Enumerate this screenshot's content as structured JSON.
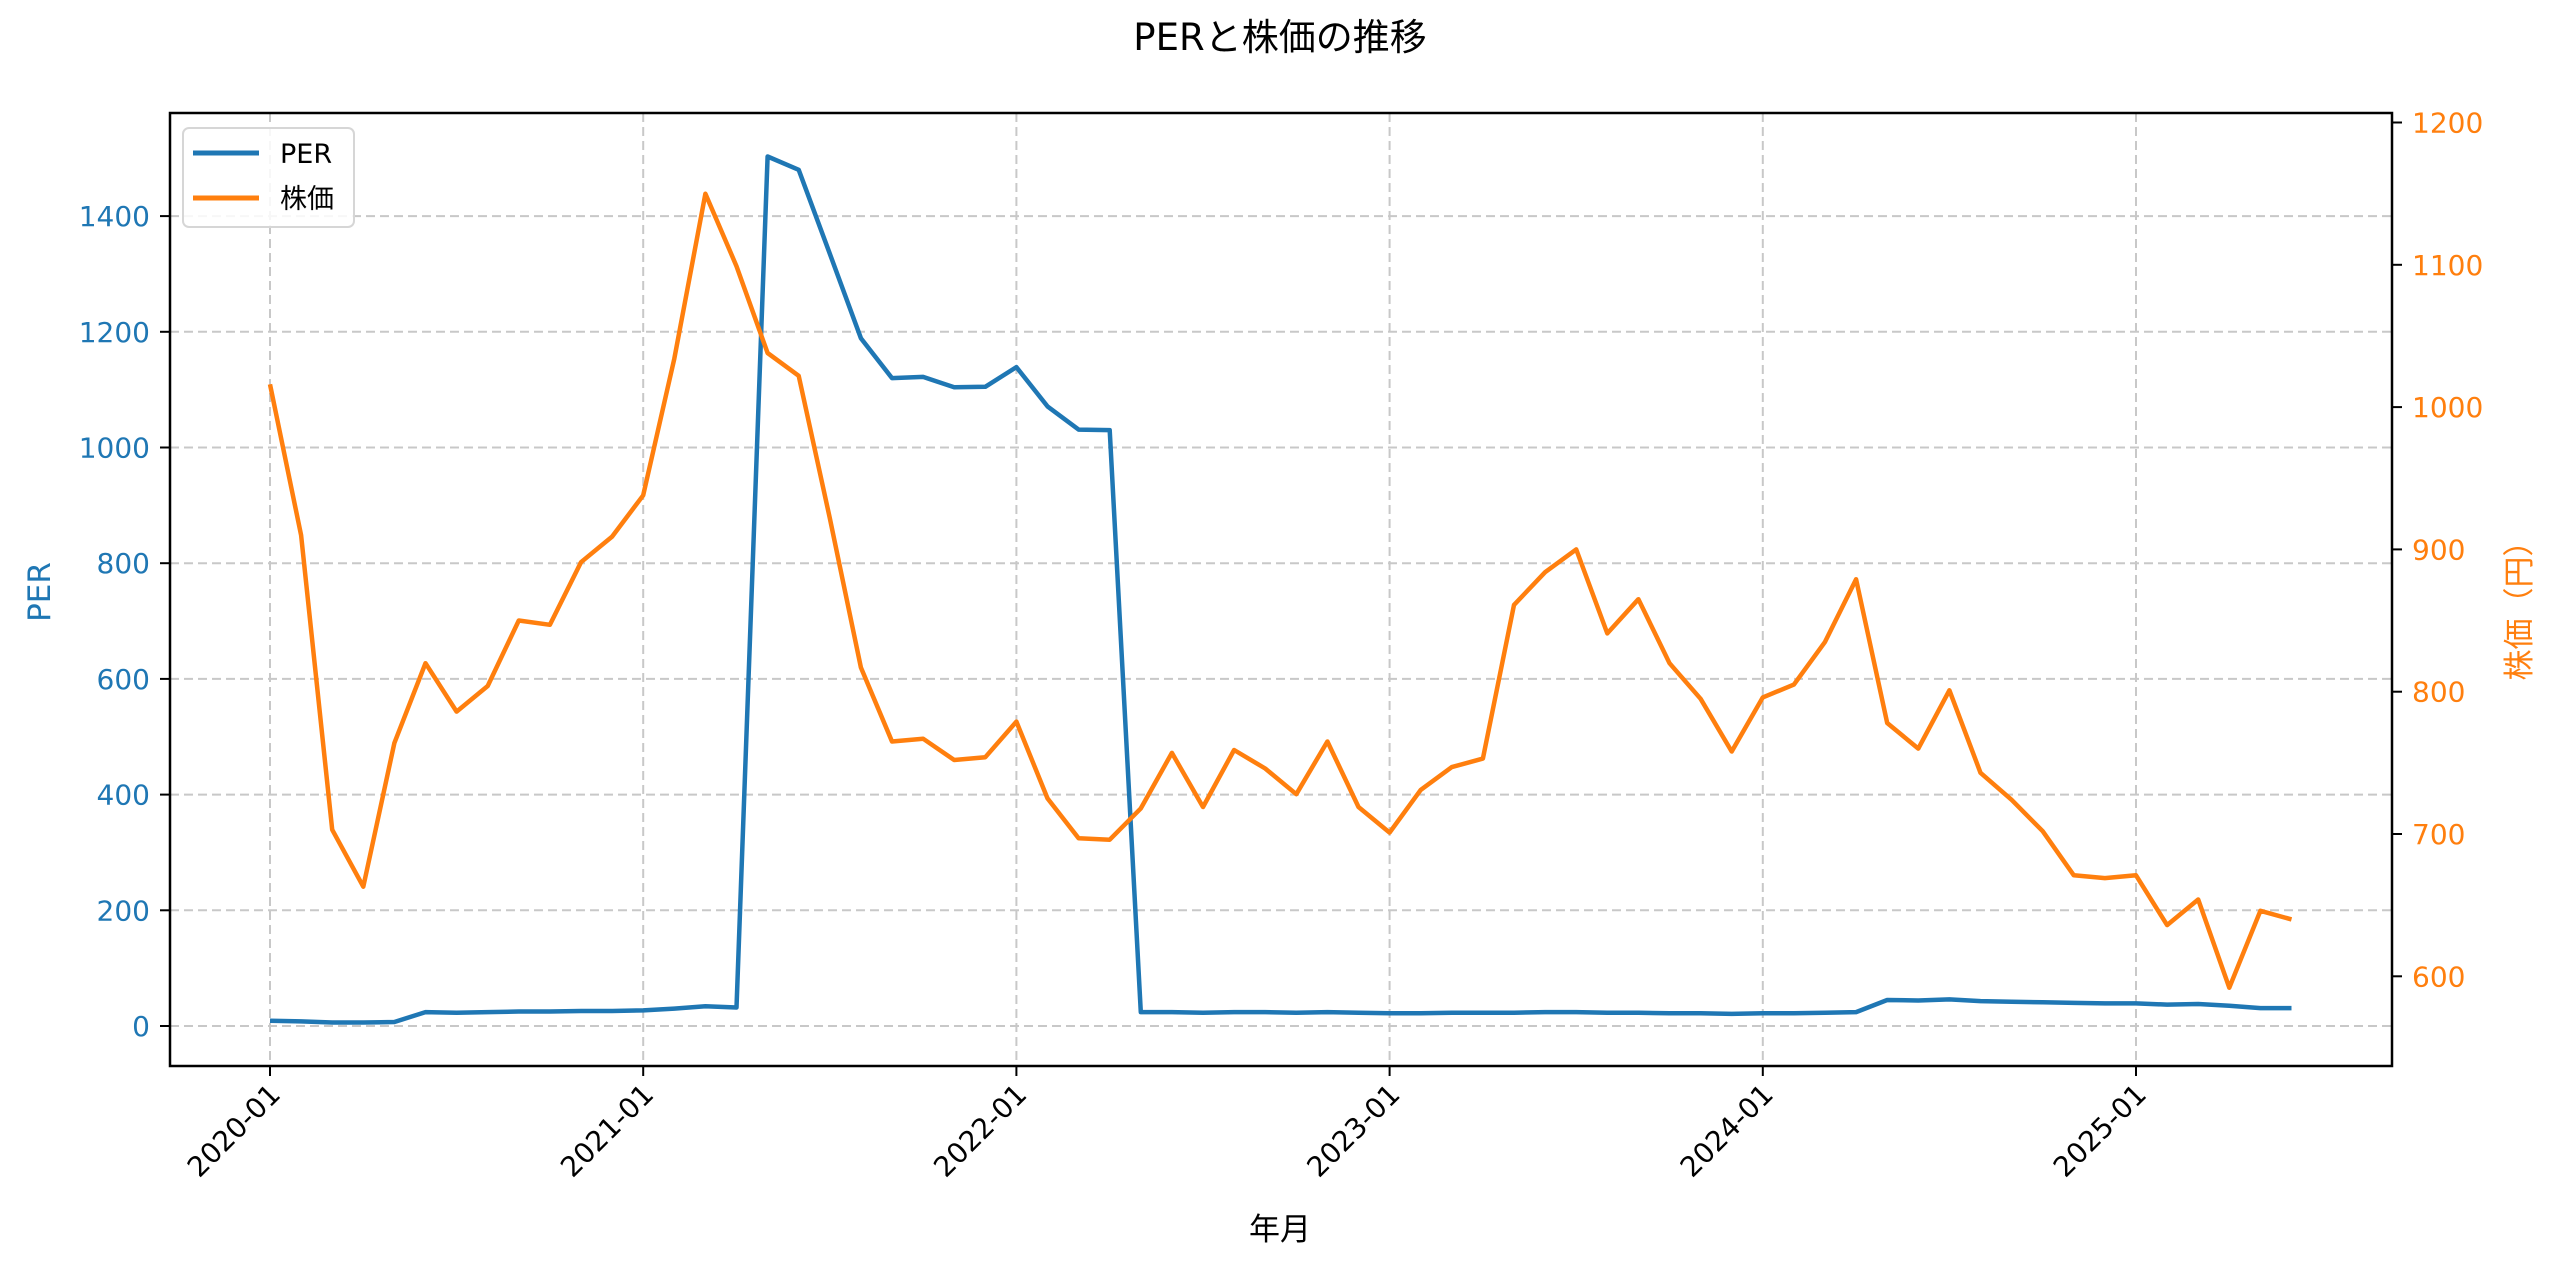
{
  "chart_data": {
    "type": "line",
    "title": "PERと株価の推移",
    "xlabel": "年月",
    "ylabel_left": "PER",
    "ylabel_right": "株価（円）",
    "ylim_left": [
      -70,
      1565
    ],
    "ylim_right": [
      540,
      1210
    ],
    "yticks_left": [
      0,
      200,
      400,
      600,
      800,
      1000,
      1200,
      1400
    ],
    "yticks_right": [
      600,
      700,
      800,
      900,
      1000,
      1100,
      1200
    ],
    "xtick_labels": [
      "2020-01",
      "2021-01",
      "2022-01",
      "2023-01",
      "2024-01",
      "2025-01"
    ],
    "grid": true,
    "legend_position": "upper left",
    "x": [
      "2020-01",
      "2020-02",
      "2020-03",
      "2020-04",
      "2020-05",
      "2020-06",
      "2020-07",
      "2020-08",
      "2020-09",
      "2020-10",
      "2020-11",
      "2020-12",
      "2021-01",
      "2021-02",
      "2021-03",
      "2021-04",
      "2021-05",
      "2021-06",
      "2021-07",
      "2021-08",
      "2021-09",
      "2021-10",
      "2021-11",
      "2021-12",
      "2022-01",
      "2022-02",
      "2022-03",
      "2022-04",
      "2022-05",
      "2022-06",
      "2022-07",
      "2022-08",
      "2022-09",
      "2022-10",
      "2022-11",
      "2022-12",
      "2023-01",
      "2023-02",
      "2023-03",
      "2023-04",
      "2023-05",
      "2023-06",
      "2023-07",
      "2023-08",
      "2023-09",
      "2023-10",
      "2023-11",
      "2023-12",
      "2024-01",
      "2024-02",
      "2024-03",
      "2024-04",
      "2024-05",
      "2024-06",
      "2024-07",
      "2024-08",
      "2024-09",
      "2024-10",
      "2024-11",
      "2024-12",
      "2025-01",
      "2025-02",
      "2025-03",
      "2025-04",
      "2025-05",
      "2025-06"
    ],
    "series": [
      {
        "name": "PER",
        "axis": "left",
        "color": "#1f77b4",
        "values": [
          9,
          8,
          6,
          6,
          7,
          24,
          23,
          24,
          25,
          25,
          26,
          26,
          27,
          30,
          34,
          32,
          1503,
          1480,
          1335,
          1189,
          1120,
          1122,
          1104,
          1105,
          1139,
          1071,
          1031,
          1030,
          24,
          24,
          23,
          24,
          24,
          23,
          24,
          23,
          22,
          22,
          23,
          23,
          23,
          24,
          24,
          23,
          23,
          22,
          22,
          21,
          22,
          22,
          23,
          24,
          45,
          44,
          46,
          43,
          42,
          41,
          40,
          39,
          39,
          37,
          38,
          35,
          31,
          31
        ]
      },
      {
        "name": "株価",
        "axis": "right",
        "color": "#ff7f0e",
        "values": [
          1016,
          910,
          703,
          663,
          764,
          820,
          786,
          804,
          850,
          847,
          891,
          909,
          938,
          1034,
          1150,
          1099,
          1038,
          1022,
          922,
          817,
          765,
          767,
          752,
          754,
          779,
          725,
          697,
          696,
          718,
          757,
          719,
          759,
          746,
          728,
          765,
          719,
          701,
          731,
          747,
          753,
          861,
          884,
          900,
          841,
          865,
          820,
          795,
          758,
          796,
          805,
          835,
          879,
          778,
          760,
          801,
          743,
          724,
          702,
          671,
          669,
          671,
          636,
          654,
          592,
          646,
          640
        ]
      }
    ]
  },
  "legend": {
    "items": [
      {
        "label": "PER",
        "color": "#1f77b4"
      },
      {
        "label": "株価",
        "color": "#ff7f0e"
      }
    ]
  }
}
